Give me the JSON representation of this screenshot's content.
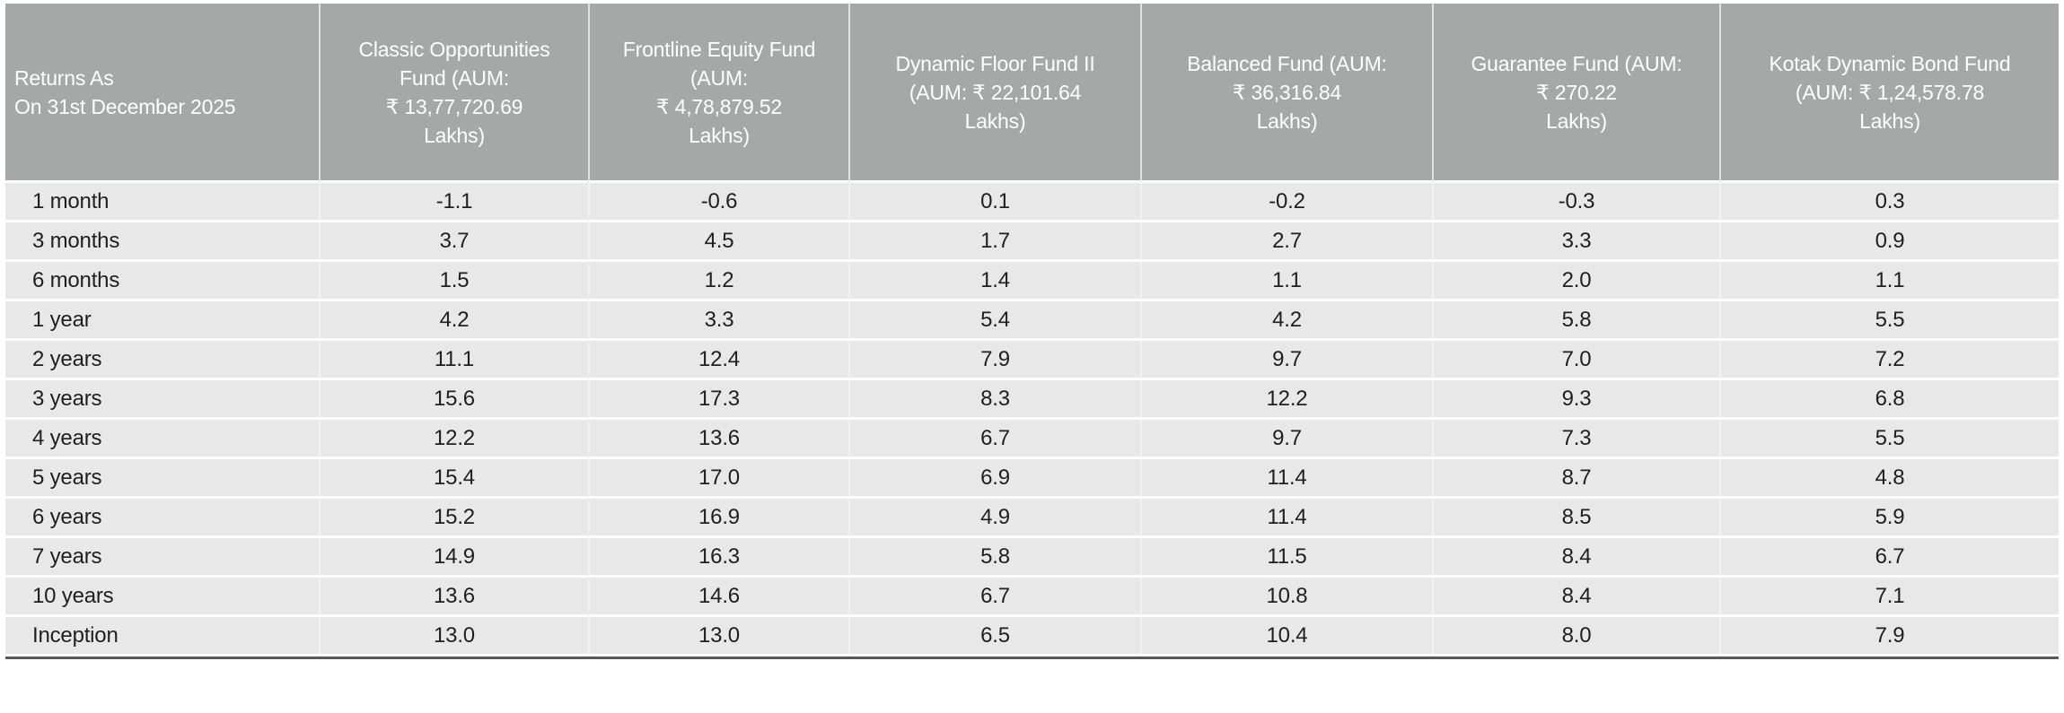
{
  "colors": {
    "header-bg": "#a6a7a7",
    "header-text": "#ffffff",
    "row-bg": "#e8e8e9",
    "row-separator": "#ffffff",
    "body-text": "#1f1f1f",
    "bottom-border": "#58585a"
  },
  "chart_data": {
    "type": "table",
    "title": "Fund returns table",
    "corner_header": "Returns As\nOn 31st December 2025",
    "columns": [
      "Classic Opportunities\nFund (AUM:\n₹ 13,77,720.69\nLakhs)",
      "Frontline Equity Fund\n(AUM:\n₹ 4,78,879.52\nLakhs)",
      "Dynamic Floor Fund II\n(AUM: ₹ 22,101.64\nLakhs)",
      "Balanced Fund (AUM:\n₹ 36,316.84\nLakhs)",
      "Guarantee Fund (AUM:\n₹ 270.22\nLakhs)",
      "Kotak Dynamic Bond Fund\n(AUM: ₹ 1,24,578.78\nLakhs)"
    ],
    "rows": [
      {
        "label": "1 month",
        "values": [
          "-1.1",
          "-0.6",
          "0.1",
          "-0.2",
          "-0.3",
          "0.3"
        ]
      },
      {
        "label": "3 months",
        "values": [
          "3.7",
          "4.5",
          "1.7",
          "2.7",
          "3.3",
          "0.9"
        ]
      },
      {
        "label": "6 months",
        "values": [
          "1.5",
          "1.2",
          "1.4",
          "1.1",
          "2.0",
          "1.1"
        ]
      },
      {
        "label": "1 year",
        "values": [
          "4.2",
          "3.3",
          "5.4",
          "4.2",
          "5.8",
          "5.5"
        ]
      },
      {
        "label": "2 years",
        "values": [
          "11.1",
          "12.4",
          "7.9",
          "9.7",
          "7.0",
          "7.2"
        ]
      },
      {
        "label": "3 years",
        "values": [
          "15.6",
          "17.3",
          "8.3",
          "12.2",
          "9.3",
          "6.8"
        ]
      },
      {
        "label": "4 years",
        "values": [
          "12.2",
          "13.6",
          "6.7",
          "9.7",
          "7.3",
          "5.5"
        ]
      },
      {
        "label": "5 years",
        "values": [
          "15.4",
          "17.0",
          "6.9",
          "11.4",
          "8.7",
          "4.8"
        ]
      },
      {
        "label": "6 years",
        "values": [
          "15.2",
          "16.9",
          "4.9",
          "11.4",
          "8.5",
          "5.9"
        ]
      },
      {
        "label": "7 years",
        "values": [
          "14.9",
          "16.3",
          "5.8",
          "11.5",
          "8.4",
          "6.7"
        ]
      },
      {
        "label": "10 years",
        "values": [
          "13.6",
          "14.6",
          "6.7",
          "10.8",
          "8.4",
          "7.1"
        ]
      },
      {
        "label": "Inception",
        "values": [
          "13.0",
          "13.0",
          "6.5",
          "10.4",
          "8.0",
          "7.9"
        ]
      }
    ]
  }
}
